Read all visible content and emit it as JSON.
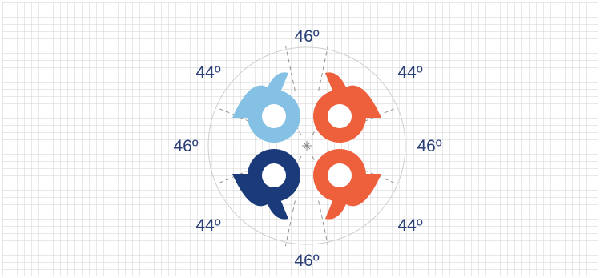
{
  "diagram": {
    "colors": {
      "grid": "#d2d2d2",
      "grid_background": "#ffffff",
      "guide_circle": "#cfcfcf",
      "guide_lines": "#8a8a8a",
      "label_text": "#2b3f77",
      "petal_light_blue": "#85c1e5",
      "petal_orange": "#ee5f3c",
      "petal_navy": "#1b3a7a"
    },
    "labels": {
      "top": "46º",
      "bottom": "46º",
      "left": "46º",
      "right": "46º",
      "top_left": "44º",
      "top_right": "44º",
      "bottom_left": "44º",
      "bottom_right": "44º"
    },
    "quadrants": {
      "top_left": {
        "color_key": "petal_light_blue"
      },
      "top_right": {
        "color_key": "petal_orange"
      },
      "bottom_left": {
        "color_key": "petal_navy"
      },
      "bottom_right": {
        "color_key": "petal_orange"
      }
    }
  }
}
